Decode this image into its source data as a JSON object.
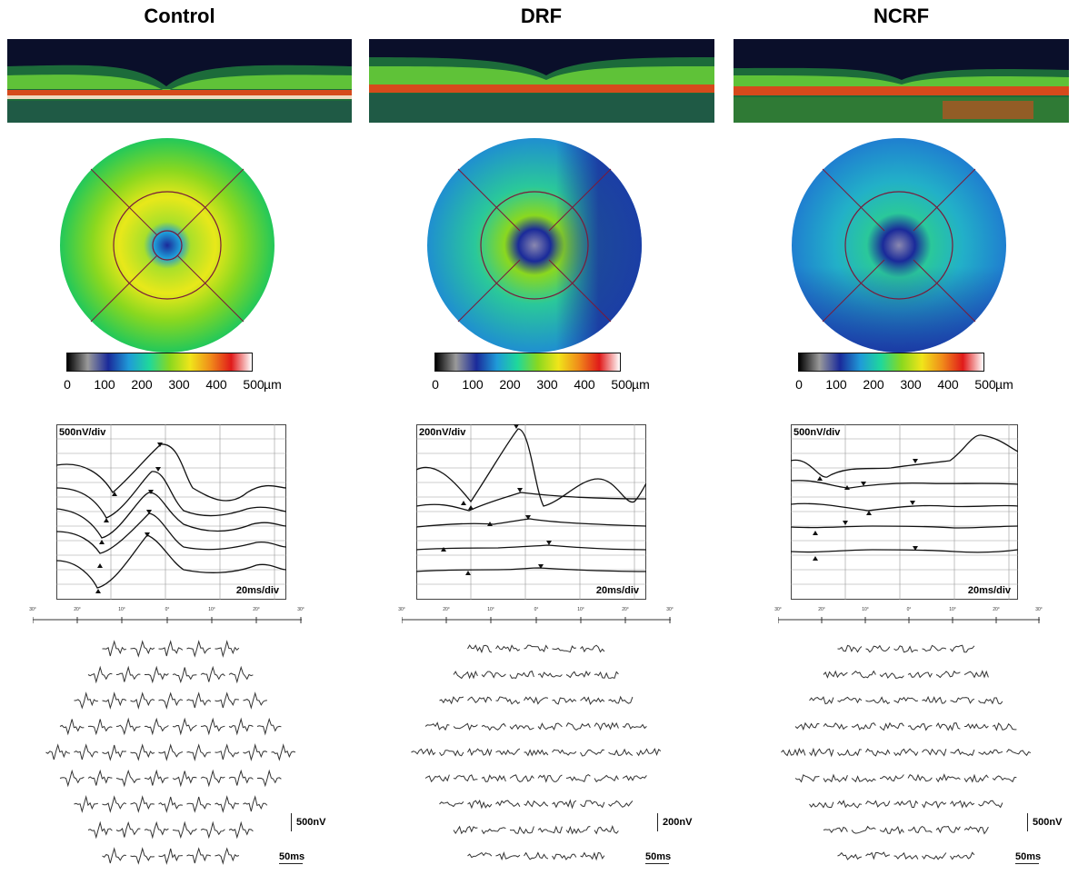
{
  "colors": {
    "oct_bg": "#0a0f2a",
    "trace": "#333333",
    "grid": "#888888"
  },
  "colorbar": {
    "stops": [
      "#000000",
      "#9a9a9a",
      "#1a2a9a",
      "#1f9bd8",
      "#1fd89b",
      "#8ad81f",
      "#f0e51a",
      "#f08a1a",
      "#e01a1a",
      "#ffffff"
    ],
    "ticks": [
      "0",
      "100",
      "200",
      "300",
      "400",
      "500"
    ],
    "unit": "µm"
  },
  "panels": [
    {
      "id": "control",
      "title": "Control",
      "map_style": "control",
      "erg": {
        "scale_label": "500nV/div",
        "time_label": "20ms/div"
      },
      "axis_labels": [
        "30°",
        "20°",
        "10°",
        "0°",
        "10°",
        "20°",
        "30°"
      ],
      "trace_scale": {
        "amplitude": "500nV",
        "time": "50ms"
      }
    },
    {
      "id": "drf",
      "title": "DRF",
      "map_style": "drf",
      "erg": {
        "scale_label": "200nV/div",
        "time_label": "20ms/div"
      },
      "axis_labels": [
        "30°",
        "20°",
        "10°",
        "0°",
        "10°",
        "20°",
        "30°"
      ],
      "trace_scale": {
        "amplitude": "200nV",
        "time": "50ms"
      }
    },
    {
      "id": "ncrf",
      "title": "NCRF",
      "map_style": "ncrf",
      "erg": {
        "scale_label": "500nV/div",
        "time_label": "20ms/div"
      },
      "axis_labels": [
        "30°",
        "20°",
        "10°",
        "0°",
        "10°",
        "20°",
        "30°"
      ],
      "trace_scale": {
        "amplitude": "500nV",
        "time": "50ms"
      }
    }
  ]
}
